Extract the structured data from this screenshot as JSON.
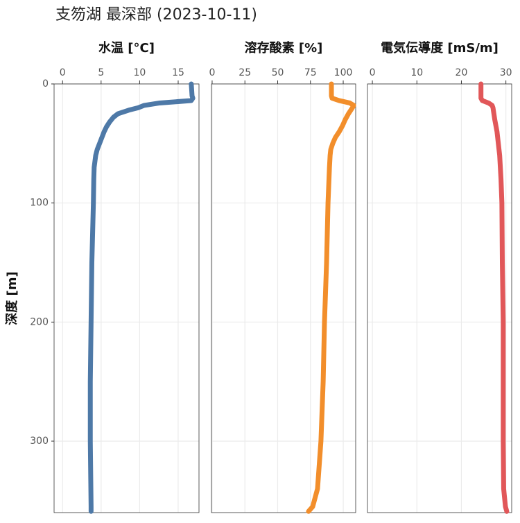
{
  "title": "支笏湖 最深部 (2023-10-11)",
  "chart_data": [
    {
      "type": "line",
      "title": "水温 [°C]",
      "ylabel": "深度 [m]",
      "color": "#4e79a7",
      "depth": [
        0,
        10,
        12,
        14,
        16,
        18,
        20,
        22,
        25,
        28,
        32,
        36,
        40,
        45,
        50,
        55,
        60,
        70,
        80,
        100,
        150,
        200,
        250,
        300,
        355,
        359
      ],
      "values": [
        16.7,
        16.8,
        16.9,
        16.7,
        12.6,
        10.6,
        9.8,
        8.6,
        7.2,
        6.6,
        6.1,
        5.7,
        5.4,
        5.1,
        4.8,
        4.5,
        4.3,
        4.1,
        4.05,
        4.0,
        3.8,
        3.7,
        3.6,
        3.6,
        3.7,
        3.7
      ],
      "xlim": [
        -1.1,
        17.7
      ],
      "xticks": [
        0,
        5,
        10,
        15
      ],
      "ylim": [
        0,
        360
      ],
      "yticks": [
        0,
        100,
        200,
        300
      ]
    },
    {
      "type": "line",
      "title": "溶存酸素 [%]",
      "color": "#f28e2b",
      "depth": [
        0,
        10,
        12,
        14,
        16,
        18,
        20,
        25,
        30,
        35,
        40,
        45,
        50,
        55,
        60,
        70,
        100,
        150,
        200,
        250,
        300,
        340,
        355,
        359
      ],
      "values": [
        91,
        91,
        91.5,
        97,
        105,
        108,
        107,
        104,
        101.5,
        99.5,
        97,
        94,
        92,
        90.5,
        90,
        89.5,
        88.4,
        87.3,
        85.7,
        84.7,
        83,
        80.4,
        76.7,
        73.5
      ],
      "xlim": [
        -0.5,
        109.5
      ],
      "xticks": [
        0,
        25,
        50,
        75,
        100
      ],
      "ylim": [
        0,
        360
      ],
      "yticks": [
        0,
        100,
        200,
        300
      ]
    },
    {
      "type": "line",
      "title": "電気伝導度 [mS/m]",
      "color": "#e15759",
      "depth": [
        0,
        12,
        14,
        16,
        18,
        20,
        25,
        30,
        40,
        50,
        60,
        80,
        100,
        150,
        200,
        250,
        300,
        340,
        355,
        359
      ],
      "values": [
        24.4,
        24.4,
        24.7,
        26.1,
        26.9,
        27.1,
        27.3,
        27.5,
        28,
        28.3,
        28.6,
        28.9,
        29.1,
        29.2,
        29.4,
        29.4,
        29.4,
        29.5,
        29.9,
        30.2
      ],
      "xlim": [
        -1.1,
        31.3
      ],
      "xticks": [
        0,
        10,
        20,
        30
      ],
      "ylim": [
        0,
        360
      ],
      "yticks": [
        0,
        100,
        200,
        300
      ]
    }
  ]
}
